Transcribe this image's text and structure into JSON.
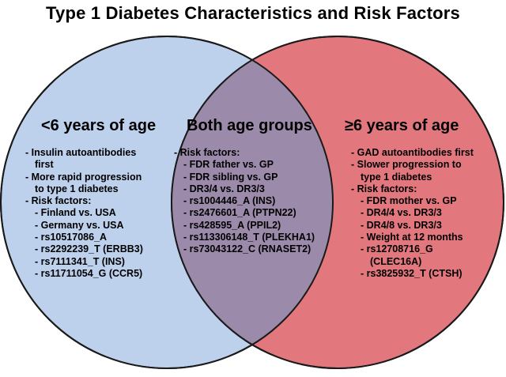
{
  "title": "Type 1 Diabetes Characteristics and Risk Factors",
  "colors": {
    "left_circle": "#bdd0ec",
    "right_circle": "#e2777d",
    "overlap": "#9b8aaa",
    "outline": "#1a1a1a"
  },
  "left": {
    "heading": "<6 years of age",
    "items": [
      {
        "text": "- Insulin autoantibodies",
        "indent": 0
      },
      {
        "text": "first",
        "indent": 1
      },
      {
        "text": "- More rapid progression",
        "indent": 0
      },
      {
        "text": "to type 1 diabetes",
        "indent": 1
      },
      {
        "text": "- Risk factors:",
        "indent": 0
      },
      {
        "text": "- Finland vs. USA",
        "indent": 1
      },
      {
        "text": "- Germany vs. USA",
        "indent": 1
      },
      {
        "text": "- rs10517086_A",
        "indent": 1
      },
      {
        "text": "- rs2292239_T (ERBB3)",
        "indent": 1
      },
      {
        "text": "- rs7111341_T (INS)",
        "indent": 1
      },
      {
        "text": "- rs11711054_G (CCR5)",
        "indent": 1
      }
    ]
  },
  "middle": {
    "heading": "Both age groups",
    "items": [
      {
        "text": "- Risk factors:",
        "indent": 0
      },
      {
        "text": "- FDR father vs. GP",
        "indent": 1
      },
      {
        "text": "- FDR sibling vs. GP",
        "indent": 1
      },
      {
        "text": "- DR3/4 vs. DR3/3",
        "indent": 1
      },
      {
        "text": "- rs1004446_A (INS)",
        "indent": 1
      },
      {
        "text": "- rs2476601_A (PTPN22)",
        "indent": 1
      },
      {
        "text": "- rs428595_A (PPIL2)",
        "indent": 1
      },
      {
        "text": "- rs113306148_T (PLEKHA1)",
        "indent": 1
      },
      {
        "text": "- rs73043122_C (RNASET2)",
        "indent": 1
      }
    ]
  },
  "right": {
    "heading": "≥6 years of age",
    "items": [
      {
        "text": "- GAD autoantibodies first",
        "indent": 0
      },
      {
        "text": "- Slower progression to",
        "indent": 0
      },
      {
        "text": "type 1 diabetes",
        "indent": 1
      },
      {
        "text": "- Risk factors:",
        "indent": 0
      },
      {
        "text": "- FDR mother vs. GP",
        "indent": 1
      },
      {
        "text": "- DR4/4 vs. DR3/3",
        "indent": 1
      },
      {
        "text": "- DR4/8 vs. DR3/3",
        "indent": 1
      },
      {
        "text": "- Weight at 12 months",
        "indent": 1
      },
      {
        "text": "- rs12708716_G",
        "indent": 1
      },
      {
        "text": "(CLEC16A)",
        "indent": 2
      },
      {
        "text": "- rs3825932_T (CTSH)",
        "indent": 1
      }
    ]
  }
}
